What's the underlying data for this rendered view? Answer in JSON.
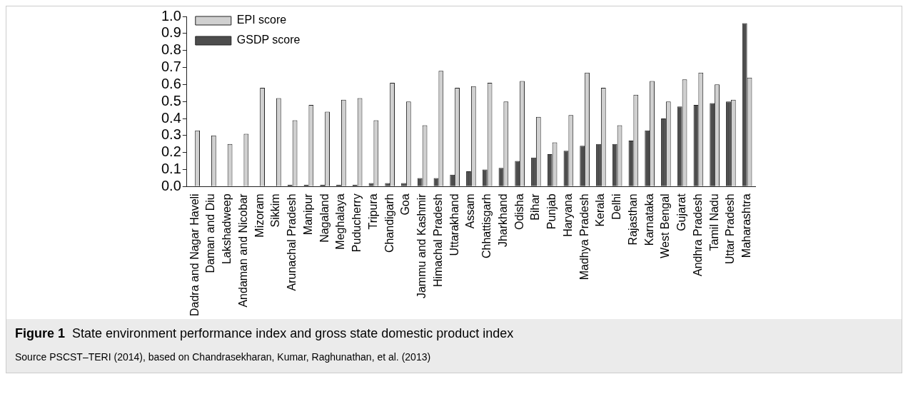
{
  "chart_data": {
    "type": "bar",
    "title": "Figure 1",
    "subtitle": "State environment performance index and gross state domestic product index",
    "annotations": [
      "Source  PSCST–TERI (2014), based on Chandrasekharan, Kumar, Raghunathan, et al. (2013)"
    ],
    "categories": [
      "Dadra and Nagar Haveli",
      "Daman and Diu",
      "Lakshadweep",
      "Andaman and Nicobar",
      "Mizoram",
      "Sikkim",
      "Arunachal Pradesh",
      "Manipur",
      "Nagaland",
      "Meghalaya",
      "Puducherry",
      "Tripura",
      "Chandigarh",
      "Goa",
      "Jammu and Kashmir",
      "Himachal Pradesh",
      "Uttarakhand",
      "Assam",
      "Chhattisgarh",
      "Jharkhand",
      "Odisha",
      "Bihar",
      "Punjab",
      "Haryana",
      "Madhya Pradesh",
      "Kerala",
      "Delhi",
      "Rajasthan",
      "Karnataka",
      "West Bengal",
      "Gujarat",
      "Andhra Pradesh",
      "Tamil Nadu",
      "Uttar Pradesh",
      "Maharashtra"
    ],
    "series": [
      {
        "name": "GSDP score",
        "color": "#4d4d4d",
        "values": [
          0,
          0,
          0,
          0,
          0,
          0,
          0.01,
          0.01,
          0.01,
          0.01,
          0.01,
          0.02,
          0.02,
          0.02,
          0.05,
          0.05,
          0.07,
          0.09,
          0.1,
          0.11,
          0.15,
          0.17,
          0.19,
          0.21,
          0.24,
          0.25,
          0.25,
          0.27,
          0.33,
          0.4,
          0.47,
          0.48,
          0.49,
          0.5,
          0.96
        ]
      },
      {
        "name": "EPI score",
        "color": "#d0d0d0",
        "values": [
          0.33,
          0.3,
          0.25,
          0.31,
          0.58,
          0.52,
          0.39,
          0.48,
          0.44,
          0.51,
          0.52,
          0.39,
          0.61,
          0.5,
          0.36,
          0.68,
          0.58,
          0.59,
          0.61,
          0.5,
          0.62,
          0.41,
          0.26,
          0.42,
          0.67,
          0.58,
          0.36,
          0.54,
          0.62,
          0.5,
          0.63,
          0.67,
          0.6,
          0.51,
          0.64
        ]
      }
    ],
    "ylim": [
      0,
      1
    ],
    "yticks": [
      {
        "value": 0,
        "label": "0.0"
      },
      {
        "value": 0.1,
        "label": "0.1"
      },
      {
        "value": 0.2,
        "label": "0.2"
      },
      {
        "value": 0.3,
        "label": "0.3"
      },
      {
        "value": 0.4,
        "label": "0.4"
      },
      {
        "value": 0.5,
        "label": "0.5"
      },
      {
        "value": 0.6,
        "label": "0.6"
      },
      {
        "value": 0.7,
        "label": "0.7"
      },
      {
        "value": 0.8,
        "label": "0.8"
      },
      {
        "value": 0.9,
        "label": "0.9"
      },
      {
        "value": 1,
        "label": "1.0"
      }
    ],
    "legend": "top left",
    "grid": false
  }
}
